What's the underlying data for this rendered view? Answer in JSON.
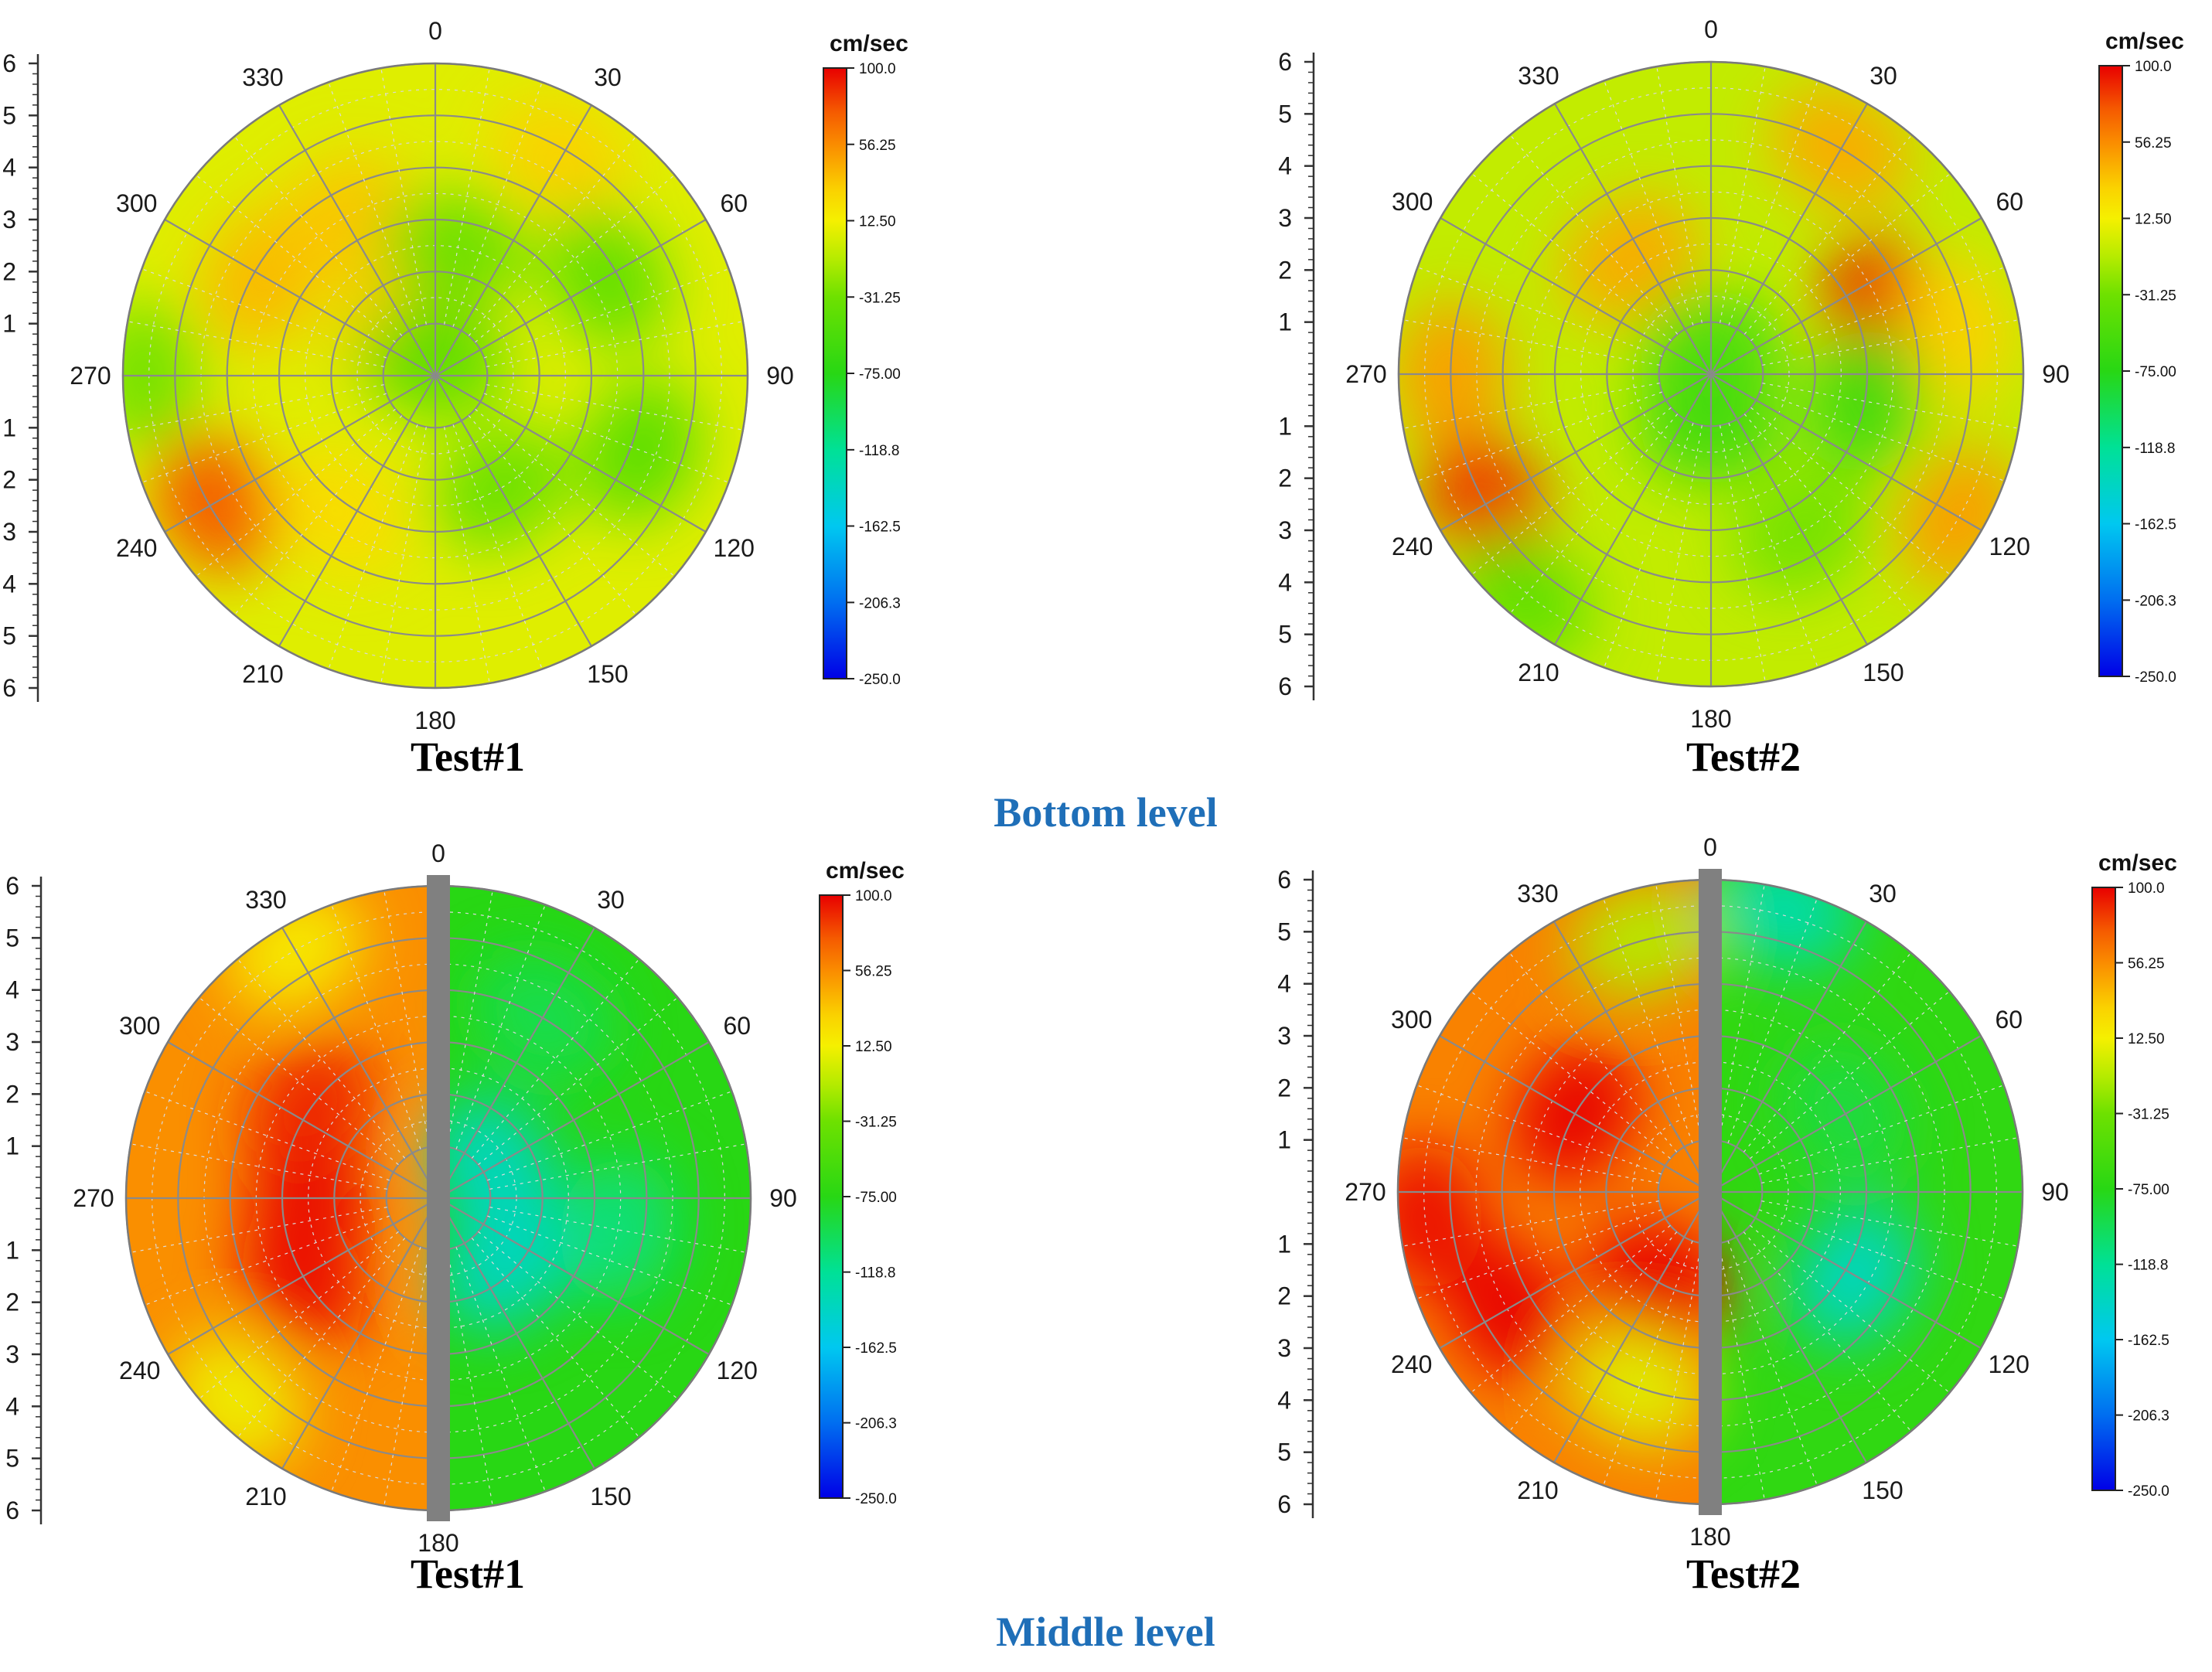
{
  "figure": {
    "level_labels": [
      "Bottom level",
      "Middle level"
    ]
  },
  "chart_data": [
    {
      "type": "heatmap",
      "subtype": "polar-contour",
      "title": "Test#1",
      "level": "Bottom level",
      "angular_ticks": [
        "0",
        "30",
        "60",
        "90",
        "120",
        "150",
        "180",
        "210",
        "240",
        "270",
        "300",
        "330"
      ],
      "radial_ticks": [
        "1",
        "2",
        "3",
        "4",
        "5",
        "6"
      ],
      "radial_range": [
        0,
        6
      ],
      "colorbar": {
        "unit": "cm/sec",
        "ticks": [
          "100.0",
          "56.25",
          "12.50",
          "-31.25",
          "-75.00",
          "-118.8",
          "-162.5",
          "-206.3",
          "-250.0"
        ],
        "range": [
          -250,
          100
        ]
      },
      "base_value": 5,
      "blobs": [
        {
          "angle": 240,
          "r": 4.9,
          "value": 75
        },
        {
          "angle": 300,
          "r": 3.8,
          "value": 40
        },
        {
          "angle": 330,
          "r": 3.5,
          "value": 35
        },
        {
          "angle": 335,
          "r": 1.0,
          "value": 40
        },
        {
          "angle": 350,
          "r": 1.3,
          "value": 35
        },
        {
          "angle": 30,
          "r": 4.8,
          "value": 30
        },
        {
          "angle": 60,
          "r": 3.8,
          "value": -40
        },
        {
          "angle": 110,
          "r": 4.2,
          "value": -45
        },
        {
          "angle": 150,
          "r": 2.5,
          "value": -35
        },
        {
          "angle": 10,
          "r": 2.5,
          "value": -35
        },
        {
          "angle": 0,
          "r": 0.3,
          "value": -45
        },
        {
          "angle": 270,
          "r": 5.6,
          "value": -30
        },
        {
          "angle": 215,
          "r": 3.2,
          "value": 25
        }
      ]
    },
    {
      "type": "heatmap",
      "subtype": "polar-contour",
      "title": "Test#2",
      "level": "Bottom level",
      "angular_ticks": [
        "0",
        "30",
        "60",
        "90",
        "120",
        "150",
        "180",
        "210",
        "240",
        "270",
        "300",
        "330"
      ],
      "radial_ticks": [
        "1",
        "2",
        "3",
        "4",
        "5",
        "6"
      ],
      "radial_range": [
        0,
        6
      ],
      "colorbar": {
        "unit": "cm/sec",
        "ticks": [
          "100.0",
          "56.25",
          "12.50",
          "-31.25",
          "-75.00",
          "-118.8",
          "-162.5",
          "-206.3",
          "-250.0"
        ],
        "range": [
          -250,
          100
        ]
      },
      "base_value": -5,
      "blobs": [
        {
          "angle": 270,
          "r": 5.0,
          "value": 50
        },
        {
          "angle": 240,
          "r": 5.0,
          "value": 85
        },
        {
          "angle": 70,
          "r": 3.5,
          "value": 90
        },
        {
          "angle": 80,
          "r": 4.8,
          "value": 30
        },
        {
          "angle": 30,
          "r": 5.0,
          "value": 45
        },
        {
          "angle": 120,
          "r": 5.5,
          "value": 50
        },
        {
          "angle": 325,
          "r": 2.7,
          "value": 45
        },
        {
          "angle": 100,
          "r": 3.0,
          "value": -60
        },
        {
          "angle": 0,
          "r": 0.5,
          "value": -55
        },
        {
          "angle": 180,
          "r": 1.0,
          "value": -60
        },
        {
          "angle": 220,
          "r": 5.6,
          "value": -40
        },
        {
          "angle": 150,
          "r": 3.5,
          "value": -30
        }
      ]
    },
    {
      "type": "heatmap",
      "subtype": "polar-contour",
      "title": "Test#1",
      "level": "Middle level",
      "angular_ticks": [
        "0",
        "30",
        "60",
        "90",
        "120",
        "150",
        "180",
        "210",
        "240",
        "270",
        "300",
        "330"
      ],
      "radial_ticks": [
        "1",
        "2",
        "3",
        "4",
        "5",
        "6"
      ],
      "radial_range": [
        0,
        6
      ],
      "colorbar": {
        "unit": "cm/sec",
        "ticks": [
          "100.0",
          "56.25",
          "12.50",
          "-31.25",
          "-75.00",
          "-118.8",
          "-162.5",
          "-206.3",
          "-250.0"
        ],
        "range": [
          -250,
          100
        ]
      },
      "left_half_value": 55,
      "right_half_value": -75,
      "blobs": [
        {
          "angle": 270,
          "r": 2.5,
          "value": 100
        },
        {
          "angle": 240,
          "r": 3.0,
          "value": 95
        },
        {
          "angle": 305,
          "r": 3.0,
          "value": 90
        },
        {
          "angle": 225,
          "r": 5.5,
          "value": 10
        },
        {
          "angle": 330,
          "r": 5.5,
          "value": 15
        },
        {
          "angle": 60,
          "r": 1.2,
          "value": -140
        },
        {
          "angle": 135,
          "r": 1.8,
          "value": -140
        },
        {
          "angle": 100,
          "r": 3.5,
          "value": -110
        },
        {
          "angle": 30,
          "r": 4.0,
          "value": -95
        }
      ]
    },
    {
      "type": "heatmap",
      "subtype": "polar-contour",
      "title": "Test#2",
      "level": "Middle level",
      "angular_ticks": [
        "0",
        "30",
        "60",
        "90",
        "120",
        "150",
        "180",
        "210",
        "240",
        "270",
        "300",
        "330"
      ],
      "radial_ticks": [
        "1",
        "2",
        "3",
        "4",
        "5",
        "6"
      ],
      "radial_range": [
        0,
        6
      ],
      "colorbar": {
        "unit": "cm/sec",
        "ticks": [
          "100.0",
          "56.25",
          "12.50",
          "-31.25",
          "-75.00",
          "-118.8",
          "-162.5",
          "-206.3",
          "-250.0"
        ],
        "range": [
          -250,
          100
        ]
      },
      "left_half_value": 60,
      "right_half_value": -70,
      "blobs": [
        {
          "angle": 300,
          "r": 3.0,
          "value": 100
        },
        {
          "angle": 240,
          "r": 4.5,
          "value": 100
        },
        {
          "angle": 265,
          "r": 5.5,
          "value": 95
        },
        {
          "angle": 210,
          "r": 2.0,
          "value": 100
        },
        {
          "angle": 200,
          "r": 4.0,
          "value": 5
        },
        {
          "angle": 345,
          "r": 5.0,
          "value": -10
        },
        {
          "angle": 120,
          "r": 3.2,
          "value": -140
        },
        {
          "angle": 15,
          "r": 5.6,
          "value": -130
        },
        {
          "angle": 60,
          "r": 3.0,
          "value": -90
        }
      ]
    }
  ]
}
